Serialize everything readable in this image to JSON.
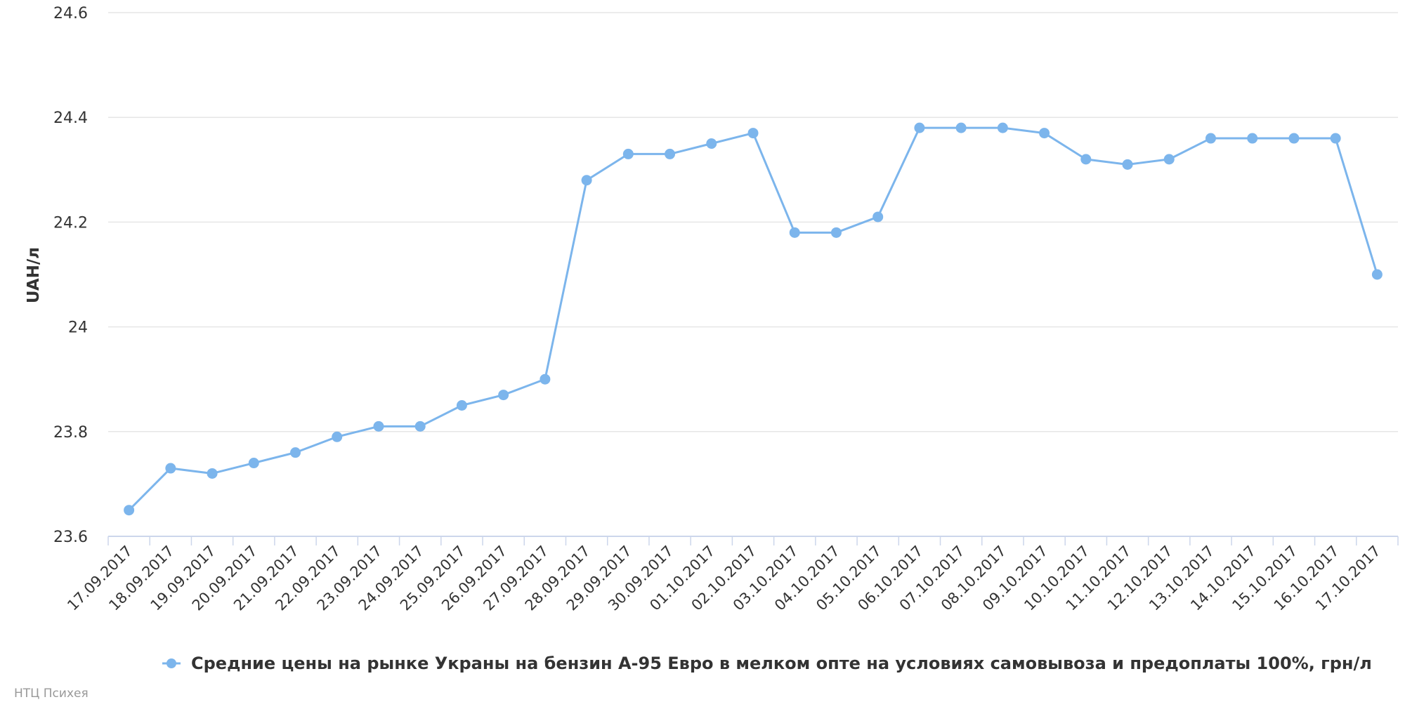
{
  "chart_data": {
    "type": "line",
    "title": "",
    "xlabel": "",
    "ylabel": "UAH/л",
    "ylim": [
      23.6,
      24.6
    ],
    "yticks": [
      23.6,
      23.8,
      24,
      24.2,
      24.4,
      24.6
    ],
    "ytick_labels": [
      "23.6",
      "23.8",
      "24",
      "24.2",
      "24.4",
      "24.6"
    ],
    "grid": true,
    "legend_position": "bottom-center",
    "colors": {
      "series": "#7cb5ec",
      "grid": "#e6e6e6",
      "axis": "#ccd6eb"
    },
    "categories": [
      "17.09.2017",
      "18.09.2017",
      "19.09.2017",
      "20.09.2017",
      "21.09.2017",
      "22.09.2017",
      "23.09.2017",
      "24.09.2017",
      "25.09.2017",
      "26.09.2017",
      "27.09.2017",
      "28.09.2017",
      "29.09.2017",
      "30.09.2017",
      "01.10.2017",
      "02.10.2017",
      "03.10.2017",
      "04.10.2017",
      "05.10.2017",
      "06.10.2017",
      "07.10.2017",
      "08.10.2017",
      "09.10.2017",
      "10.10.2017",
      "11.10.2017",
      "12.10.2017",
      "13.10.2017",
      "14.10.2017",
      "15.10.2017",
      "16.10.2017",
      "17.10.2017"
    ],
    "series": [
      {
        "name": "Средние цены на рынке Украны на бензин А-95 Евро в мелком опте на условиях самовывоза и предоплаты 100%, грн/л",
        "values": [
          23.65,
          23.73,
          23.72,
          23.74,
          23.76,
          23.79,
          23.81,
          23.81,
          23.85,
          23.87,
          23.9,
          24.28,
          24.33,
          24.33,
          24.35,
          24.37,
          24.18,
          24.18,
          24.21,
          24.38,
          24.38,
          24.38,
          24.37,
          24.32,
          24.31,
          24.32,
          24.36,
          24.36,
          24.36,
          24.36,
          24.1
        ]
      }
    ]
  },
  "credits": "НТЦ Психея"
}
